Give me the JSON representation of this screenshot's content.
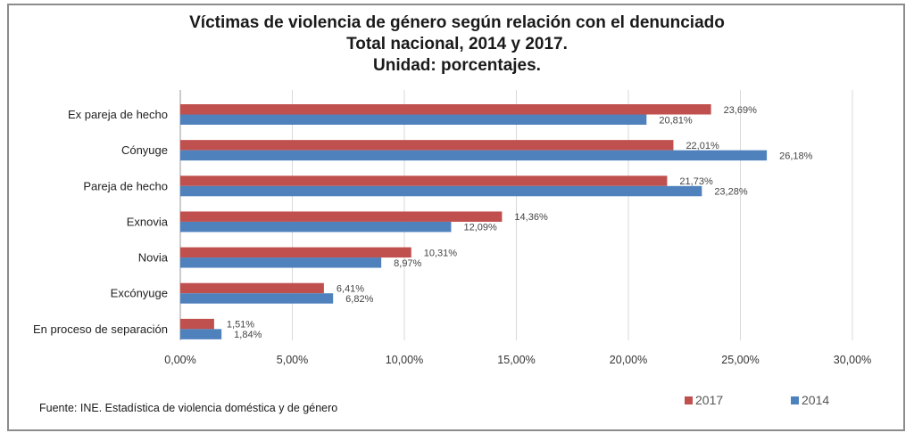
{
  "chart_data": {
    "type": "bar",
    "orientation": "horizontal",
    "title": [
      "Víctimas de violencia de género según relación con el denunciado",
      "Total nacional, 2014 y 2017.",
      "Unidad: porcentajes."
    ],
    "categories": [
      "Ex pareja de hecho",
      "Cónyuge",
      "Pareja de hecho",
      "Exnovia",
      "Novia",
      "Excónyuge",
      "En proceso de separación"
    ],
    "series": [
      {
        "name": "2017",
        "color": "#c0504d",
        "values": [
          23.69,
          22.01,
          21.73,
          14.36,
          10.31,
          6.41,
          1.51
        ],
        "labels": [
          "23,69%",
          "22,01%",
          "21,73%",
          "14,36%",
          "10,31%",
          "6,41%",
          "1,51%"
        ]
      },
      {
        "name": "2014",
        "color": "#4f81bd",
        "values": [
          20.81,
          26.18,
          23.28,
          12.09,
          8.97,
          6.82,
          1.84
        ],
        "labels": [
          "20,81%",
          "26,18%",
          "23,28%",
          "12,09%",
          "8,97%",
          "6,82%",
          "1,84%"
        ]
      }
    ],
    "xlim": [
      0,
      30
    ],
    "xticks": [
      0,
      5,
      10,
      15,
      20,
      25,
      30
    ],
    "xtick_labels": [
      "0,00%",
      "5,00%",
      "10,00%",
      "15,00%",
      "20,00%",
      "25,00%",
      "30,00%"
    ],
    "grid": "vertical",
    "legend": "bottom-right"
  },
  "source": "Fuente: INE. Estadística de violencia doméstica y de género"
}
